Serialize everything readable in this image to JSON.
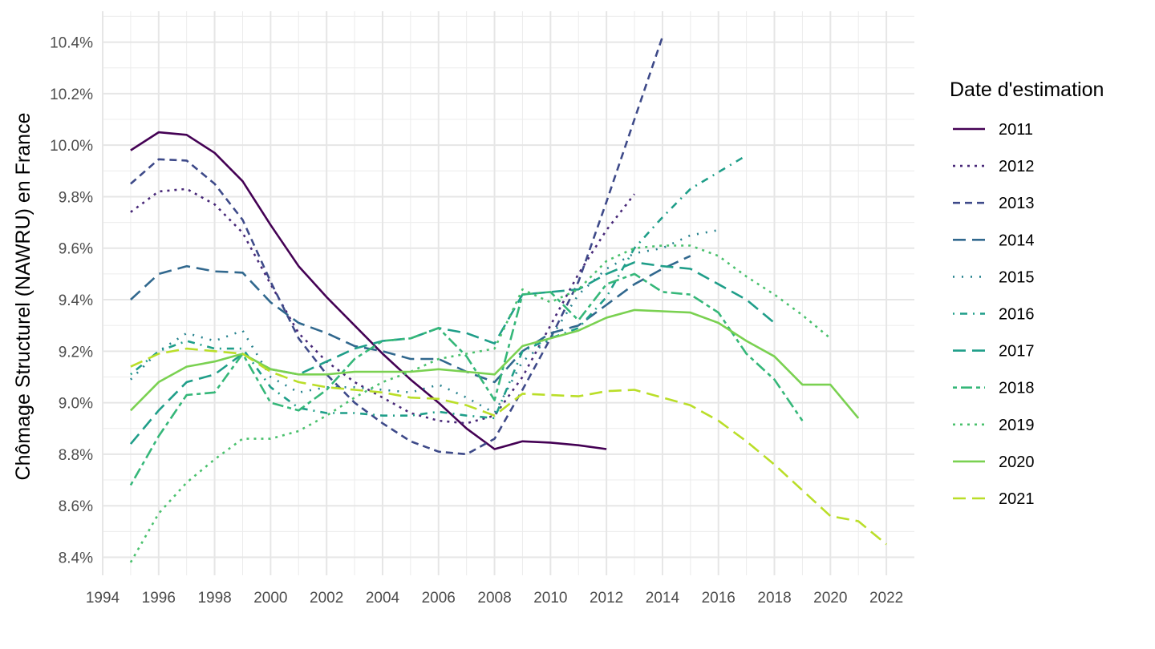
{
  "chart_data": {
    "type": "line",
    "xlabel": "",
    "ylabel": "Chômage Structurel (NAWRU) en France",
    "xlim": [
      1994,
      2023
    ],
    "ylim": [
      8.33,
      10.52
    ],
    "x_ticks": [
      "1994",
      "1996",
      "1998",
      "2000",
      "2002",
      "2004",
      "2006",
      "2008",
      "2010",
      "2012",
      "2014",
      "2016",
      "2018",
      "2020",
      "2022"
    ],
    "y_ticks": [
      "8.4%",
      "8.6%",
      "8.8%",
      "9.0%",
      "9.2%",
      "9.4%",
      "9.6%",
      "9.8%",
      "10.0%",
      "10.2%",
      "10.4%"
    ],
    "grid": true,
    "legend": {
      "title": "Date d'estimation",
      "position": "right"
    },
    "series": [
      {
        "name": "2011",
        "color": "#440154",
        "dash": "solid",
        "x_start": 1995,
        "values": [
          9.98,
          10.05,
          10.04,
          9.97,
          9.86,
          9.69,
          9.53,
          9.41,
          9.3,
          9.19,
          9.09,
          9.0,
          8.9,
          8.82,
          8.85,
          8.845,
          8.835,
          8.82
        ]
      },
      {
        "name": "2012",
        "color": "#482878",
        "dash": "dotted",
        "x_start": 1995,
        "values": [
          9.74,
          9.82,
          9.83,
          9.77,
          9.66,
          9.46,
          9.27,
          9.16,
          9.08,
          9.02,
          8.96,
          8.93,
          8.92,
          8.95,
          9.1,
          9.3,
          9.5,
          9.67,
          9.81
        ]
      },
      {
        "name": "2013",
        "color": "#3E4A89",
        "dash": "dashed",
        "x_start": 1995,
        "values": [
          9.85,
          9.945,
          9.94,
          9.85,
          9.71,
          9.47,
          9.25,
          9.11,
          9.0,
          8.92,
          8.85,
          8.81,
          8.8,
          8.86,
          9.05,
          9.25,
          9.47,
          9.78,
          10.1,
          10.42
        ]
      },
      {
        "name": "2014",
        "color": "#31688E",
        "dash": "longdash",
        "x_start": 1995,
        "values": [
          9.4,
          9.5,
          9.53,
          9.51,
          9.505,
          9.39,
          9.31,
          9.27,
          9.22,
          9.2,
          9.17,
          9.17,
          9.12,
          9.08,
          9.2,
          9.27,
          9.3,
          9.38,
          9.46,
          9.52,
          9.57
        ]
      },
      {
        "name": "2015",
        "color": "#26828E",
        "dash": "dotted-sparse",
        "x_start": 1995,
        "values": [
          9.09,
          9.2,
          9.27,
          9.24,
          9.28,
          9.1,
          9.04,
          9.06,
          9.06,
          9.05,
          9.04,
          9.07,
          9.02,
          8.96,
          9.16,
          9.25,
          9.42,
          9.52,
          9.58,
          9.6,
          9.65,
          9.67
        ]
      },
      {
        "name": "2016",
        "color": "#1F9E89",
        "dash": "dotdash",
        "x_start": 1995,
        "values": [
          9.11,
          9.2,
          9.24,
          9.21,
          9.21,
          9.06,
          8.98,
          8.96,
          8.96,
          8.95,
          8.95,
          8.965,
          8.95,
          8.94,
          9.2,
          9.25,
          9.29,
          9.41,
          9.6,
          9.72,
          9.83,
          9.895,
          9.96
        ]
      },
      {
        "name": "2017",
        "color": "#1F9E89",
        "dash": "longdash",
        "x_start": 1995,
        "values": [
          8.84,
          8.97,
          9.08,
          9.11,
          9.19,
          9.13,
          9.11,
          9.16,
          9.21,
          9.24,
          9.25,
          9.29,
          9.27,
          9.23,
          9.42,
          9.43,
          9.44,
          9.5,
          9.545,
          9.53,
          9.52,
          9.46,
          9.4,
          9.31
        ]
      },
      {
        "name": "2018",
        "color": "#35B779",
        "dash": "twodash",
        "x_start": 1995,
        "values": [
          8.68,
          8.87,
          9.03,
          9.04,
          9.19,
          9.0,
          8.97,
          9.05,
          9.17,
          9.24,
          9.25,
          9.29,
          9.18,
          9.01,
          9.42,
          9.43,
          9.32,
          9.46,
          9.5,
          9.43,
          9.42,
          9.35,
          9.19,
          9.09,
          8.93
        ]
      },
      {
        "name": "2019",
        "color": "#4AC16D",
        "dash": "dotted",
        "x_start": 1995,
        "values": [
          8.38,
          8.57,
          8.69,
          8.78,
          8.86,
          8.86,
          8.89,
          8.95,
          9.02,
          9.08,
          9.12,
          9.17,
          9.19,
          9.21,
          9.44,
          9.39,
          9.44,
          9.55,
          9.6,
          9.61,
          9.61,
          9.57,
          9.49,
          9.42,
          9.34,
          9.25
        ]
      },
      {
        "name": "2020",
        "color": "#7AD151",
        "dash": "solid",
        "x_start": 1995,
        "values": [
          8.97,
          9.08,
          9.14,
          9.16,
          9.19,
          9.13,
          9.11,
          9.11,
          9.12,
          9.12,
          9.12,
          9.13,
          9.12,
          9.11,
          9.22,
          9.25,
          9.28,
          9.33,
          9.36,
          9.355,
          9.35,
          9.31,
          9.24,
          9.18,
          9.07,
          9.07,
          8.94
        ]
      },
      {
        "name": "2021",
        "color": "#BADE28",
        "dash": "longdash",
        "x_start": 1995,
        "values": [
          9.14,
          9.19,
          9.21,
          9.2,
          9.19,
          9.12,
          9.08,
          9.06,
          9.05,
          9.04,
          9.02,
          9.015,
          8.99,
          8.95,
          9.035,
          9.03,
          9.025,
          9.045,
          9.05,
          9.02,
          8.99,
          8.93,
          8.85,
          8.76,
          8.66,
          8.56,
          8.54,
          8.45
        ]
      }
    ]
  }
}
